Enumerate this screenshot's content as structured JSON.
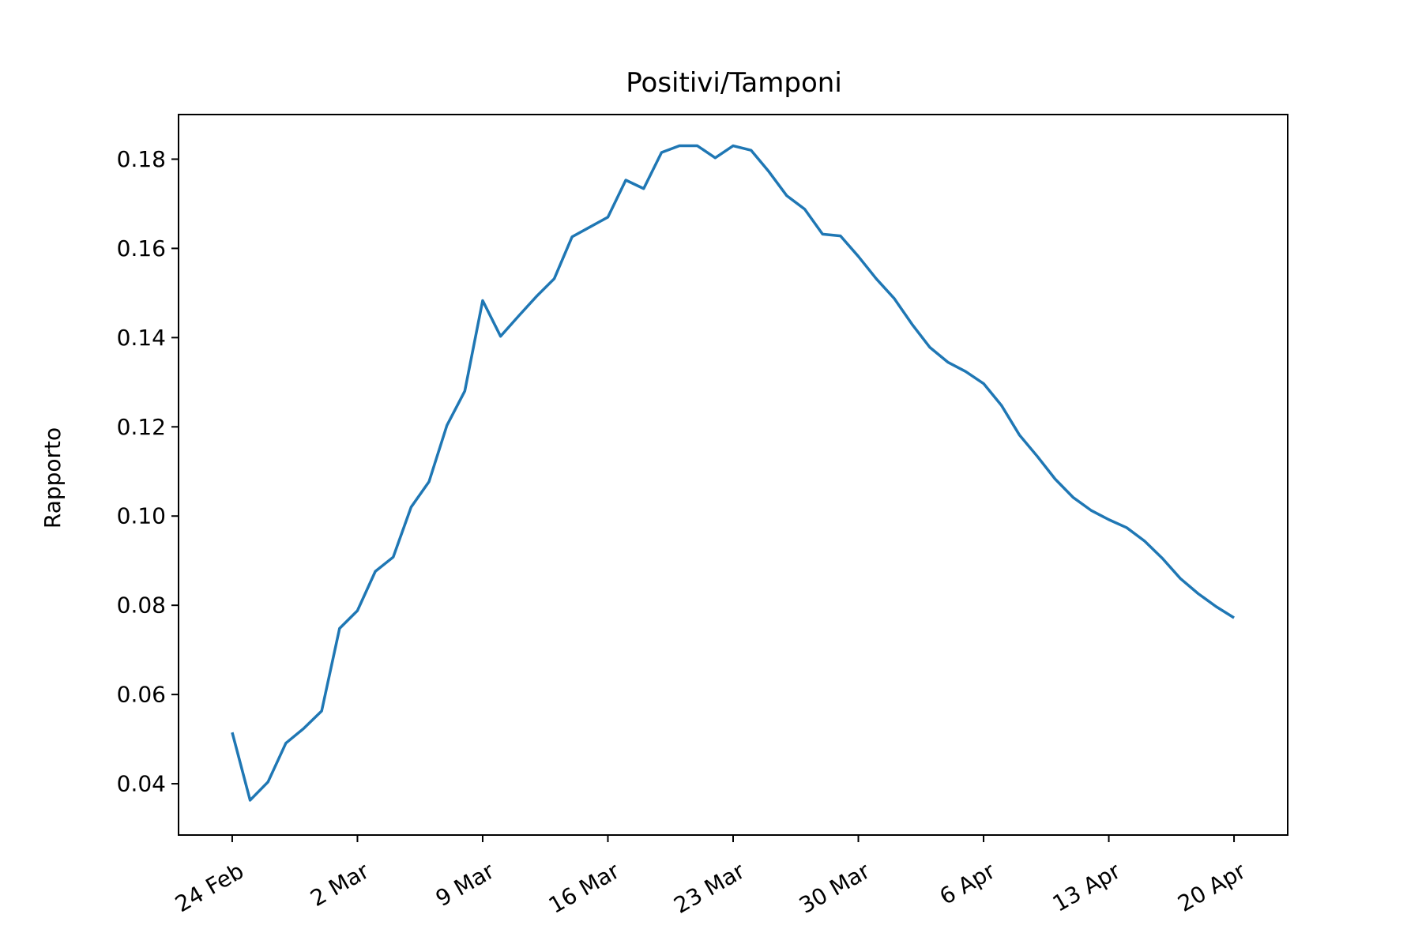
{
  "chart_data": {
    "type": "line",
    "title": "Positivi/Tamponi",
    "xlabel": "",
    "ylabel": "Rapporto",
    "x_start": "2020-02-24",
    "x_end": "2020-04-20",
    "xlim": [
      "2020-02-21",
      "2020-04-23"
    ],
    "ylim": [
      0.0285,
      0.19
    ],
    "yticks": [
      0.04,
      0.06,
      0.08,
      0.1,
      0.12,
      0.14,
      0.16,
      0.18
    ],
    "ytick_labels": [
      "0.04",
      "0.06",
      "0.08",
      "0.10",
      "0.12",
      "0.14",
      "0.16",
      "0.18"
    ],
    "xticks": [
      "2020-02-24",
      "2020-03-02",
      "2020-03-09",
      "2020-03-16",
      "2020-03-23",
      "2020-03-30",
      "2020-04-06",
      "2020-04-13",
      "2020-04-20"
    ],
    "xtick_labels": [
      "24 Feb",
      "2 Mar",
      "9 Mar",
      "16 Mar",
      "23 Mar",
      "30 Mar",
      "6 Apr",
      "13 Apr",
      "20 Apr"
    ],
    "grid": false,
    "legend": "none",
    "series": [
      {
        "color": "#1f77b4",
        "x": [
          "2020-02-24",
          "2020-02-25",
          "2020-02-26",
          "2020-02-27",
          "2020-02-28",
          "2020-02-29",
          "2020-03-01",
          "2020-03-02",
          "2020-03-03",
          "2020-03-04",
          "2020-03-05",
          "2020-03-06",
          "2020-03-07",
          "2020-03-08",
          "2020-03-09",
          "2020-03-10",
          "2020-03-11",
          "2020-03-12",
          "2020-03-13",
          "2020-03-14",
          "2020-03-15",
          "2020-03-16",
          "2020-03-17",
          "2020-03-18",
          "2020-03-19",
          "2020-03-20",
          "2020-03-21",
          "2020-03-22",
          "2020-03-23",
          "2020-03-24",
          "2020-03-25",
          "2020-03-26",
          "2020-03-27",
          "2020-03-28",
          "2020-03-29",
          "2020-03-30",
          "2020-03-31",
          "2020-04-01",
          "2020-04-02",
          "2020-04-03",
          "2020-04-04",
          "2020-04-05",
          "2020-04-06",
          "2020-04-07",
          "2020-04-08",
          "2020-04-09",
          "2020-04-10",
          "2020-04-11",
          "2020-04-12",
          "2020-04-13",
          "2020-04-14",
          "2020-04-15",
          "2020-04-16",
          "2020-04-17",
          "2020-04-18",
          "2020-04-19",
          "2020-04-20"
        ],
        "values": [
          0.0515,
          0.0363,
          0.0404,
          0.0491,
          0.0524,
          0.0563,
          0.0748,
          0.0788,
          0.0876,
          0.0908,
          0.102,
          0.1077,
          0.1203,
          0.128,
          0.1483,
          0.1403,
          0.1448,
          0.1492,
          0.1532,
          0.1626,
          0.1648,
          0.167,
          0.1753,
          0.1734,
          0.1815,
          0.183,
          0.183,
          0.1803,
          0.183,
          0.182,
          0.1772,
          0.1718,
          0.1688,
          0.1632,
          0.1628,
          0.1582,
          0.1532,
          0.1488,
          0.143,
          0.1378,
          0.1345,
          0.1324,
          0.1297,
          0.1248,
          0.1182,
          0.1134,
          0.1083,
          0.1042,
          0.1013,
          0.0992,
          0.0974,
          0.0944,
          0.0905,
          0.086,
          0.0826,
          0.0797,
          0.0772
        ]
      }
    ]
  }
}
